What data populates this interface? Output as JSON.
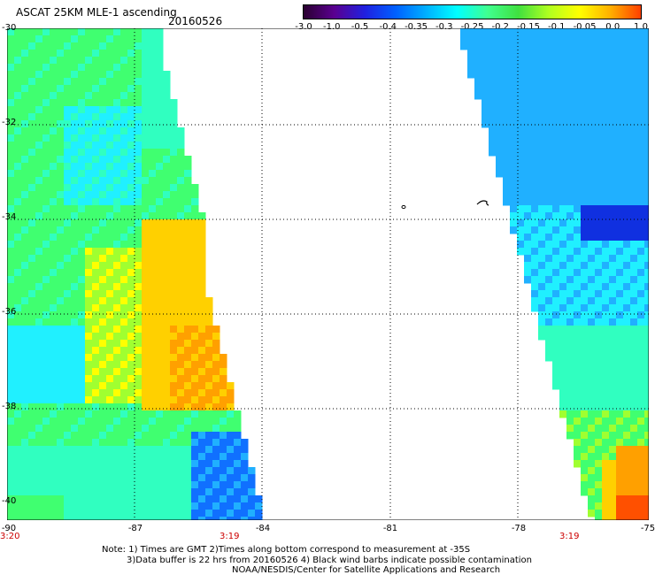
{
  "header": {
    "title": "ASCAT 25KM MLE-1 ascending",
    "date": "20160526"
  },
  "colorbar": {
    "labels": [
      "-3.0",
      "-1.0",
      "-0.5",
      "-0.4",
      "-0.35",
      "-0.3",
      "-0.25",
      "-0.2",
      "-0.15",
      "-0.1",
      "-0.05",
      "0.0",
      "1.0"
    ],
    "colors": [
      "#2a0030",
      "#5a0090",
      "#2020e0",
      "#0060ff",
      "#00b0ff",
      "#00ffff",
      "#40ff90",
      "#40e040",
      "#b0ff20",
      "#ffff00",
      "#ffb000",
      "#ff4000"
    ]
  },
  "axes": {
    "lat_labels": [
      "-30",
      "-32",
      "-34",
      "-36",
      "-38",
      "-40"
    ],
    "lon_labels": [
      "-90",
      "-87",
      "-84",
      "-81",
      "-78",
      "-75"
    ]
  },
  "pass_times": {
    "left_start": "3:20",
    "left_end": "3:19",
    "right_end": "3:19"
  },
  "notes": {
    "line1": "Note: 1) Times are GMT 2)Times along bottom correspond to measurement at -35S",
    "line2": "3)Data buffer is 22 hrs from 20160526 4) Black wind barbs indicate possible contamination",
    "line3": "NOAA/NESDIS/Center for Satellite Applications and Research"
  }
}
